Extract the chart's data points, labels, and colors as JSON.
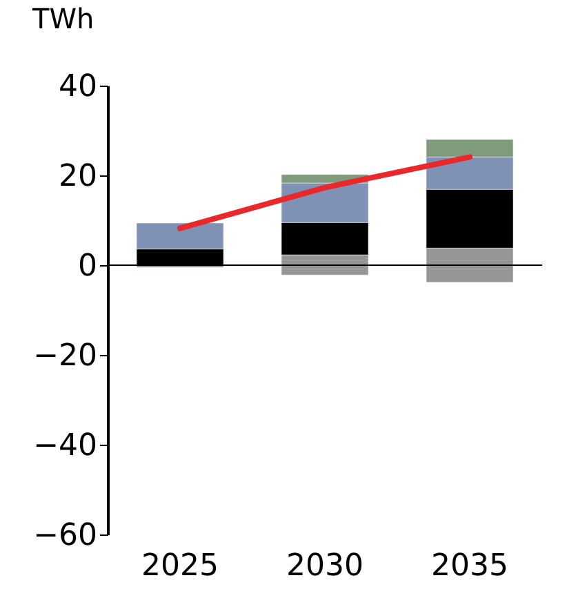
{
  "chart_data": {
    "type": "bar",
    "stacked": true,
    "ylabel": "TWh",
    "categories": [
      "2025",
      "2030",
      "2035"
    ],
    "series": [
      {
        "color": "#969696",
        "values": [
          null,
          2.3,
          3.8
        ]
      },
      {
        "color": "#969696",
        "values": [
          null,
          -2.2,
          -3.8
        ]
      },
      {
        "color": "#000000",
        "values": [
          3.6,
          7.2,
          13.1
        ]
      },
      {
        "color": "#7f91b4",
        "values": [
          5.8,
          8.8,
          7.2
        ]
      },
      {
        "color": "#809a7e",
        "values": [
          -0.5,
          1.9,
          3.9
        ]
      },
      {
        "type": "line",
        "color": "#e8282b",
        "values": [
          8.2,
          17.3,
          24.1
        ]
      }
    ],
    "ylim": [
      -60,
      40
    ],
    "yticks": [
      -60,
      -40,
      -20,
      0,
      20,
      40
    ]
  }
}
